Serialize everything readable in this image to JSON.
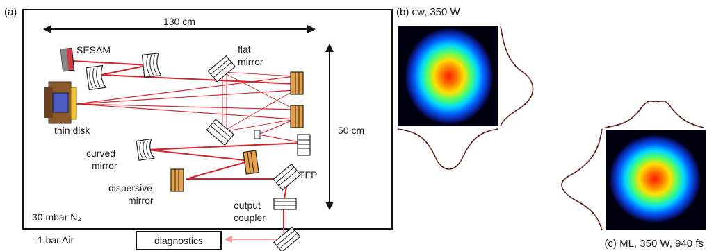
{
  "panel_a": {
    "tag": "(a)",
    "dim_horizontal": "130 cm",
    "dim_vertical": "50 cm",
    "labels": {
      "sesam": "SESAM",
      "flat_mirror_1": "flat",
      "flat_mirror_2": "mirror",
      "thin_disk": "thin disk",
      "curved_mirror_1": "curved",
      "curved_mirror_2": "mirror",
      "dispersive_mirror_1": "dispersive",
      "dispersive_mirror_2": "mirror",
      "tfp": "TFP",
      "output_coupler_1": "output",
      "output_coupler_2": "coupler",
      "atmosphere": "30 mbar N₂",
      "outside": "1 bar Air",
      "diagnostics": "diagnostics"
    }
  },
  "panel_b": {
    "title": "(b)  cw, 350 W"
  },
  "panel_c": {
    "title": "(c) ML, 350 W, 940 fs"
  },
  "colors": {
    "beam": "#d8202a",
    "beam_out": "#f09aa0",
    "dispersive": "#e8a24a",
    "sesam": "#d23a4a"
  }
}
